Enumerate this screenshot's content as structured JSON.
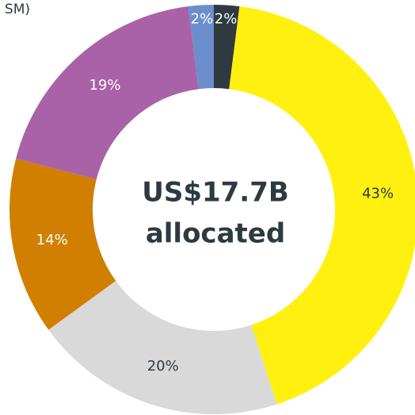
{
  "chart_data": {
    "type": "donut",
    "title": "SM)",
    "center_text": [
      "US$17.7B",
      "allocated"
    ],
    "values": [
      43,
      20,
      14,
      19,
      2,
      2
    ],
    "value_labels": [
      "43%",
      "20%",
      "14%",
      "19%",
      "2%",
      "2%"
    ],
    "colors": [
      "#fff00f",
      "#d9d9d9",
      "#d17f00",
      "#a962a8",
      "#6a8fcc",
      "#2e3a40"
    ],
    "label_colors": [
      "#2e3a40",
      "#2e3a40",
      "#ffffff",
      "#ffffff",
      "#ffffff",
      "#ffffff"
    ]
  }
}
